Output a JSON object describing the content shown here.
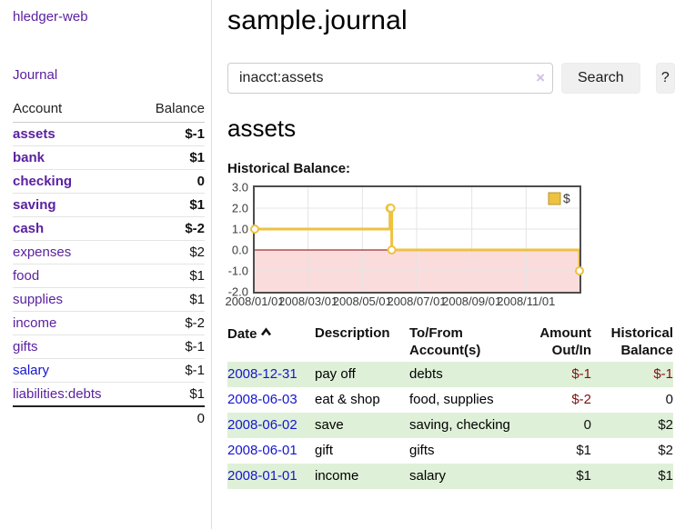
{
  "brand": {
    "label": "hledger-web"
  },
  "nav": {
    "journal": "Journal"
  },
  "colors": {
    "link_purple": "#5b21a0",
    "link_blue": "#1515d0",
    "negative_bold": "#7f1010",
    "negative_muted": "#b56868",
    "row_highlight_green": "#dff0d8",
    "series_gold": "#edc240",
    "negative_region_pink": "#fbdcdc",
    "zero_line_red": "#8b0000"
  },
  "sidebar": {
    "header": {
      "account": "Account",
      "balance": "Balance"
    },
    "accounts": [
      {
        "name": "assets",
        "balance": "$-1"
      },
      {
        "name": "bank",
        "balance": "$1"
      },
      {
        "name": "checking",
        "balance": "0"
      },
      {
        "name": "saving",
        "balance": "$1"
      },
      {
        "name": "cash",
        "balance": "$-2"
      },
      {
        "name": "expenses",
        "balance": "$2"
      },
      {
        "name": "food",
        "balance": "$1"
      },
      {
        "name": "supplies",
        "balance": "$1"
      },
      {
        "name": "income",
        "balance": "$-2"
      },
      {
        "name": "gifts",
        "balance": "$-1"
      },
      {
        "name": "salary",
        "balance": "$-1"
      },
      {
        "name": "liabilities:debts",
        "balance": "$1"
      }
    ],
    "total": "0"
  },
  "main": {
    "title": "sample.journal",
    "account_title": "assets",
    "chart_heading": "Historical Balance:"
  },
  "search": {
    "value": "inacct:assets",
    "clear": "×",
    "button": "Search",
    "help": "?"
  },
  "chart_data": {
    "type": "line",
    "title": "Historical Balance",
    "step": true,
    "x_start": "2008/01/01",
    "x_end": "2008/12/31",
    "ylim": [
      -2,
      3
    ],
    "yticks": [
      "3.0",
      "2.0",
      "1.0",
      "0.0",
      "-1.0",
      "-2.0"
    ],
    "xticks": [
      "2008/01/01",
      "2008/03/01",
      "2008/05/01",
      "2008/07/01",
      "2008/09/01",
      "2008/11/01"
    ],
    "series": [
      {
        "name": "$",
        "color": "#edc240",
        "point_fill": "#ffffff",
        "points": [
          [
            "2008/01/01",
            1
          ],
          [
            "2008/06/01",
            2
          ],
          [
            "2008/06/02",
            2
          ],
          [
            "2008/06/03",
            0
          ],
          [
            "2008/12/31",
            -1
          ]
        ]
      }
    ],
    "legend": [
      {
        "label": "$",
        "color": "#edc240"
      }
    ],
    "legend_position": "top-right",
    "grid": true,
    "negative_region_color": "#fbdcdc",
    "zero_line_color": "#8b0000"
  },
  "register": {
    "headers": {
      "date": "Date",
      "description": "Description",
      "tofrom_1": "To/From",
      "tofrom_2": "Account(s)",
      "amount_1": "Amount",
      "amount_2": "Out/In",
      "balance_1": "Historical",
      "balance_2": "Balance"
    },
    "rows": [
      {
        "date": "2008-12-31",
        "description": "pay off",
        "accounts": "debts",
        "amount": "$-1",
        "balance": "$-1"
      },
      {
        "date": "2008-06-03",
        "description": "eat & shop",
        "accounts": "food, supplies",
        "amount": "$-2",
        "balance": "0"
      },
      {
        "date": "2008-06-02",
        "description": "save",
        "accounts": "saving, checking",
        "amount": "0",
        "balance": "$2"
      },
      {
        "date": "2008-06-01",
        "description": "gift",
        "accounts": "gifts",
        "amount": "$1",
        "balance": "$2"
      },
      {
        "date": "2008-01-01",
        "description": "income",
        "accounts": "salary",
        "amount": "$1",
        "balance": "$1"
      }
    ]
  }
}
